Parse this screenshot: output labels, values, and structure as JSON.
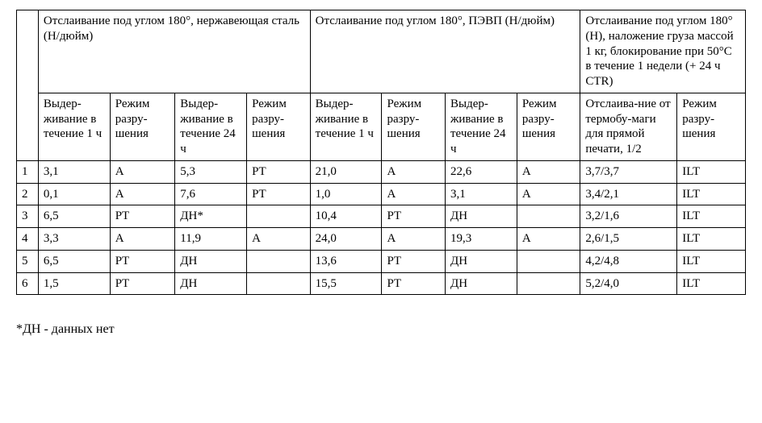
{
  "headers": {
    "topGroups": [
      "Отслаивание под углом 180°, нержавеющая сталь (Н/дюйм)",
      "Отслаивание под углом 180°, ПЭВП (Н/дюйм)",
      "Отслаивание под углом 180° (Н), наложение груза массой 1 кг, блокирование при 50°С в течение 1 недели (+ 24 ч CTR)"
    ],
    "sub": {
      "hold1h": "Выдер-живание в течение 1 ч",
      "mode": "Режим разру-шения",
      "hold24h": "Выдер-живание в течение 24 ч",
      "thermo": "Отслаива-ние от термобу-маги для прямой печати, 1/2"
    }
  },
  "rows": [
    {
      "n": "1",
      "c": [
        "3,1",
        "A",
        "5,3",
        "PT",
        "21,0",
        "A",
        "22,6",
        "A",
        "3,7/3,7",
        "ILT"
      ]
    },
    {
      "n": "2",
      "c": [
        "0,1",
        "A",
        "7,6",
        "PT",
        "1,0",
        "A",
        "3,1",
        "A",
        "3,4/2,1",
        "ILT"
      ]
    },
    {
      "n": "3",
      "c": [
        "6,5",
        "PT",
        "ДН*",
        "",
        "10,4",
        "PT",
        "ДН",
        "",
        "3,2/1,6",
        "ILT"
      ]
    },
    {
      "n": "4",
      "c": [
        "3,3",
        "A",
        "11,9",
        "A",
        "24,0",
        "A",
        "19,3",
        "A",
        "2,6/1,5",
        "ILT"
      ]
    },
    {
      "n": "5",
      "c": [
        "6,5",
        "PT",
        "ДН",
        "",
        "13,6",
        "PT",
        "ДН",
        "",
        "4,2/4,8",
        "ILT"
      ]
    },
    {
      "n": "6",
      "c": [
        "1,5",
        "PT",
        "ДН",
        "",
        "15,5",
        "PT",
        "ДН",
        "",
        "5,2/4,0",
        "ILT"
      ]
    }
  ],
  "footnote": "*ДН - данных нет"
}
